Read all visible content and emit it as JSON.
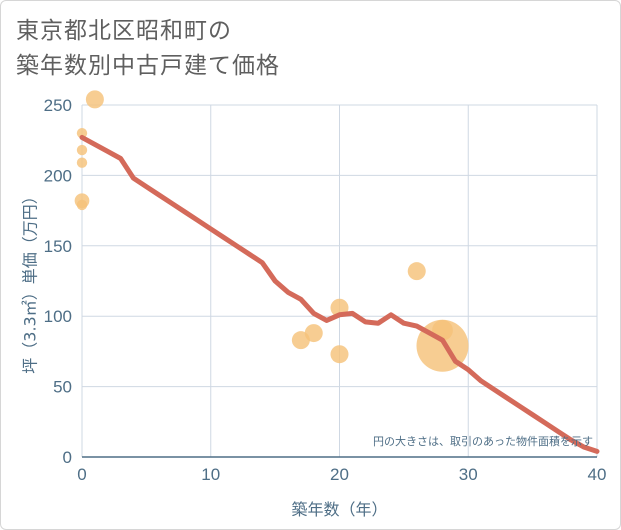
{
  "title": {
    "line1": "東京都北区昭和町の",
    "line2": "築年数別中古戸建て価格"
  },
  "chart_data": {
    "type": "scatter",
    "title": "東京都北区昭和町の築年数別中古戸建て価格",
    "xlabel": "築年数（年）",
    "ylabel": "坪（3.3㎡）単価（万円）",
    "xlim": [
      0,
      40
    ],
    "ylim": [
      0,
      250
    ],
    "x_ticks": [
      0,
      10,
      20,
      30,
      40
    ],
    "y_ticks": [
      0,
      50,
      100,
      150,
      200,
      250
    ],
    "grid": true,
    "annotation": "円の大きさは、取引のあった物件面積を示す",
    "colors": {
      "bubble": "#f5c27a",
      "bubble_alt": "#c4ae8c",
      "line": "#d46a5a",
      "grid": "#cfd8e3",
      "axis": "#4e6e86"
    },
    "bubbles": [
      {
        "x": 1,
        "y": 254,
        "size": 3
      },
      {
        "x": 0,
        "y": 230,
        "size": 1
      },
      {
        "x": 0,
        "y": 218,
        "size": 1
      },
      {
        "x": 0,
        "y": 209,
        "size": 1
      },
      {
        "x": 0,
        "y": 182,
        "size": 2
      },
      {
        "x": 0,
        "y": 179,
        "size": 1
      },
      {
        "x": 17,
        "y": 83,
        "size": 3
      },
      {
        "x": 18,
        "y": 88,
        "size": 3
      },
      {
        "x": 20,
        "y": 106,
        "size": 3
      },
      {
        "x": 20,
        "y": 73,
        "size": 3
      },
      {
        "x": 26,
        "y": 132,
        "size": 3
      },
      {
        "x": 28,
        "y": 90,
        "size": 4
      },
      {
        "x": 28,
        "y": 79,
        "size": 25
      }
    ],
    "series": [
      {
        "name": "trend",
        "x": [
          0,
          1,
          2,
          3,
          4,
          5,
          6,
          7,
          8,
          9,
          10,
          11,
          12,
          13,
          14,
          15,
          16,
          17,
          18,
          19,
          20,
          21,
          22,
          23,
          24,
          25,
          26,
          27,
          28,
          29,
          30,
          31,
          32,
          33,
          34,
          35,
          36,
          37,
          38,
          39,
          40
        ],
        "y": [
          227,
          222,
          217,
          212,
          198,
          192,
          186,
          180,
          174,
          168,
          162,
          156,
          150,
          144,
          138,
          125,
          117,
          112,
          102,
          97,
          101,
          102,
          96,
          95,
          101,
          95,
          93,
          88,
          83,
          68,
          62,
          54,
          48,
          42,
          36,
          30,
          24,
          18,
          12,
          7,
          4
        ]
      }
    ]
  }
}
